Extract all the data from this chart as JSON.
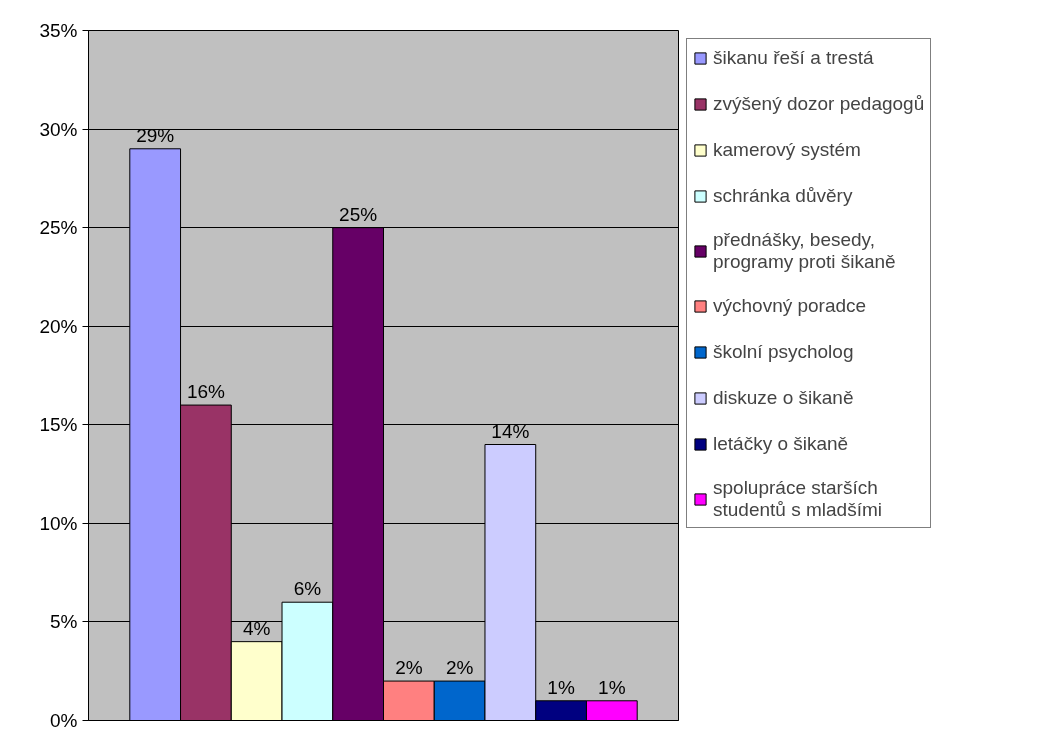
{
  "chart_data": {
    "type": "bar",
    "categories": [
      null
    ],
    "series": [
      {
        "name": "šikanu řeší a trestá",
        "color": "#9999ff",
        "values": [
          29
        ],
        "value_labels": [
          "29%"
        ]
      },
      {
        "name": "zvýšený dozor pedagogů",
        "color": "#993366",
        "values": [
          16
        ],
        "value_labels": [
          "16%"
        ]
      },
      {
        "name": "kamerový systém",
        "color": "#ffffcc",
        "values": [
          4
        ],
        "value_labels": [
          "4%"
        ]
      },
      {
        "name": "schránka důvěry",
        "color": "#ccffff",
        "values": [
          6
        ],
        "value_labels": [
          "6%"
        ]
      },
      {
        "name": "přednášky, besedy, programy proti šikaně",
        "color": "#660066",
        "values": [
          25
        ],
        "value_labels": [
          "25%"
        ]
      },
      {
        "name": "výchovný poradce",
        "color": "#ff8080",
        "values": [
          2
        ],
        "value_labels": [
          "2%"
        ]
      },
      {
        "name": "školní psycholog",
        "color": "#0066cc",
        "values": [
          2
        ],
        "value_labels": [
          "2%"
        ]
      },
      {
        "name": "diskuze o šikaně",
        "color": "#ccccff",
        "values": [
          14
        ],
        "value_labels": [
          "14%"
        ]
      },
      {
        "name": "letáčky o šikaně",
        "color": "#000080",
        "values": [
          1
        ],
        "value_labels": [
          "1%"
        ]
      },
      {
        "name": "spolupráce starších studentů s mladšími",
        "color": "#ff00ff",
        "values": [
          1
        ],
        "value_labels": [
          "1%"
        ]
      }
    ],
    "ylim": [
      0,
      35
    ],
    "yticks": [
      {
        "value": 0,
        "label": "0%"
      },
      {
        "value": 5,
        "label": "5%"
      },
      {
        "value": 10,
        "label": "10%"
      },
      {
        "value": 15,
        "label": "15%"
      },
      {
        "value": 20,
        "label": "20%"
      },
      {
        "value": 25,
        "label": "25%"
      },
      {
        "value": 30,
        "label": "30%"
      },
      {
        "value": 35,
        "label": "35%"
      }
    ],
    "grid": "y",
    "legend": "right",
    "tick_labels": "y"
  }
}
